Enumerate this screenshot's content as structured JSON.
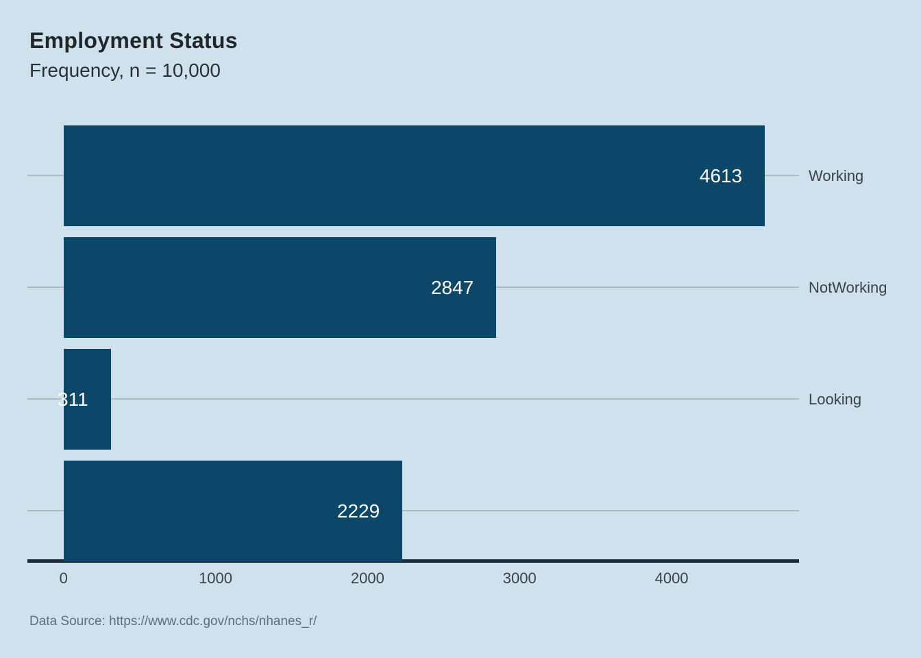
{
  "header": {
    "title": "Employment Status",
    "subtitle": "Frequency, n = 10,000"
  },
  "caption": "Data Source: https://www.cdc.gov/nchs/nhanes_r/",
  "colors": {
    "background": "#cfe1ed",
    "bar": "#0c4669",
    "axis_line": "#1b2a35",
    "gridline": "#aeb9c0",
    "title_text": "#21262b",
    "subtitle_text": "#2a3037",
    "label_text": "#3b4148",
    "value_text": "#ffffff",
    "caption_text": "#5d6e7e"
  },
  "chart_data": {
    "type": "bar",
    "orientation": "horizontal",
    "title": "Employment Status",
    "subtitle": "Frequency, n = 10,000",
    "categories": [
      "Working",
      "NotWorking",
      "Looking",
      ""
    ],
    "values": [
      4613,
      2847,
      311,
      2229
    ],
    "value_labels": [
      "4613",
      "2847",
      "311",
      "2229"
    ],
    "xlabel": "",
    "ylabel": "",
    "x_ticks": [
      "0",
      "1000",
      "2000",
      "3000",
      "4000"
    ],
    "x_tick_values": [
      0,
      1000,
      2000,
      3000,
      4000
    ],
    "xlim": [
      0,
      4838
    ],
    "grid": "horizontal gridline per category, drawn behind bars",
    "legend": "none",
    "value_label_position": "inside-bar-right",
    "category_label_position": "right-of-plot"
  }
}
